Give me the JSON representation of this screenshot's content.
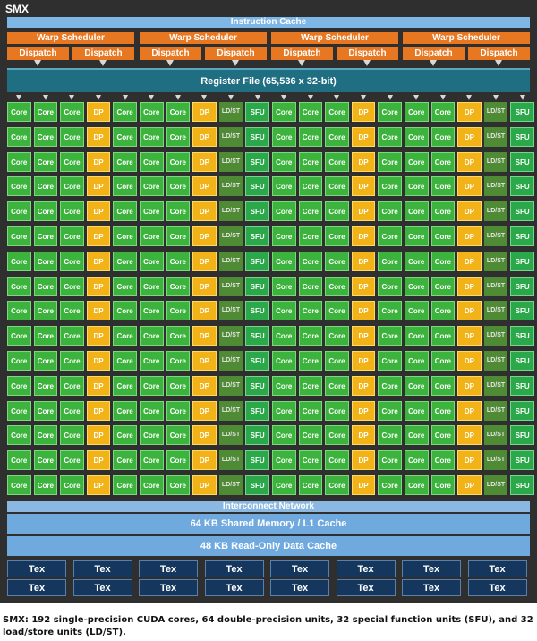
{
  "smx": {
    "title": "SMX",
    "instruction_cache": "Instruction Cache",
    "warp_schedulers": [
      "Warp Scheduler",
      "Warp Scheduler",
      "Warp Scheduler",
      "Warp Scheduler"
    ],
    "dispatch_units": [
      "Dispatch",
      "Dispatch",
      "Dispatch",
      "Dispatch",
      "Dispatch",
      "Dispatch",
      "Dispatch",
      "Dispatch"
    ],
    "register_file": "Register File (65,536 x 32-bit)",
    "unit_labels": {
      "core": "Core",
      "dp": "DP Unit",
      "ldst": "LD/ST",
      "sfu": "SFU"
    },
    "row_pattern": [
      "core",
      "core",
      "core",
      "dp",
      "core",
      "core",
      "core",
      "dp",
      "ldst",
      "sfu",
      "core",
      "core",
      "core",
      "dp",
      "core",
      "core",
      "core",
      "dp",
      "ldst",
      "sfu"
    ],
    "rows": 16,
    "interconnect": "Interconnect Network",
    "shared_memory": "64 KB Shared Memory / L1 Cache",
    "readonly_cache": "48 KB Read-Only Data Cache",
    "tex_label": "Tex",
    "tex_rows": 2,
    "tex_cols": 8
  },
  "caption": "SMX: 192 single-precision CUDA cores, 64 double-precision units, 32 special function units (SFU), and 32 load/store units (LD/ST).",
  "colors": {
    "background": "#2f2f2f",
    "core": "#3cb33c",
    "dp_unit": "#f2b318",
    "ldst": "#4f8a34",
    "sfu": "#2aa84a",
    "scheduler": "#e87722",
    "register_file": "#1f6e82",
    "cache": "#6fa9dd",
    "tex": "#15375e"
  }
}
